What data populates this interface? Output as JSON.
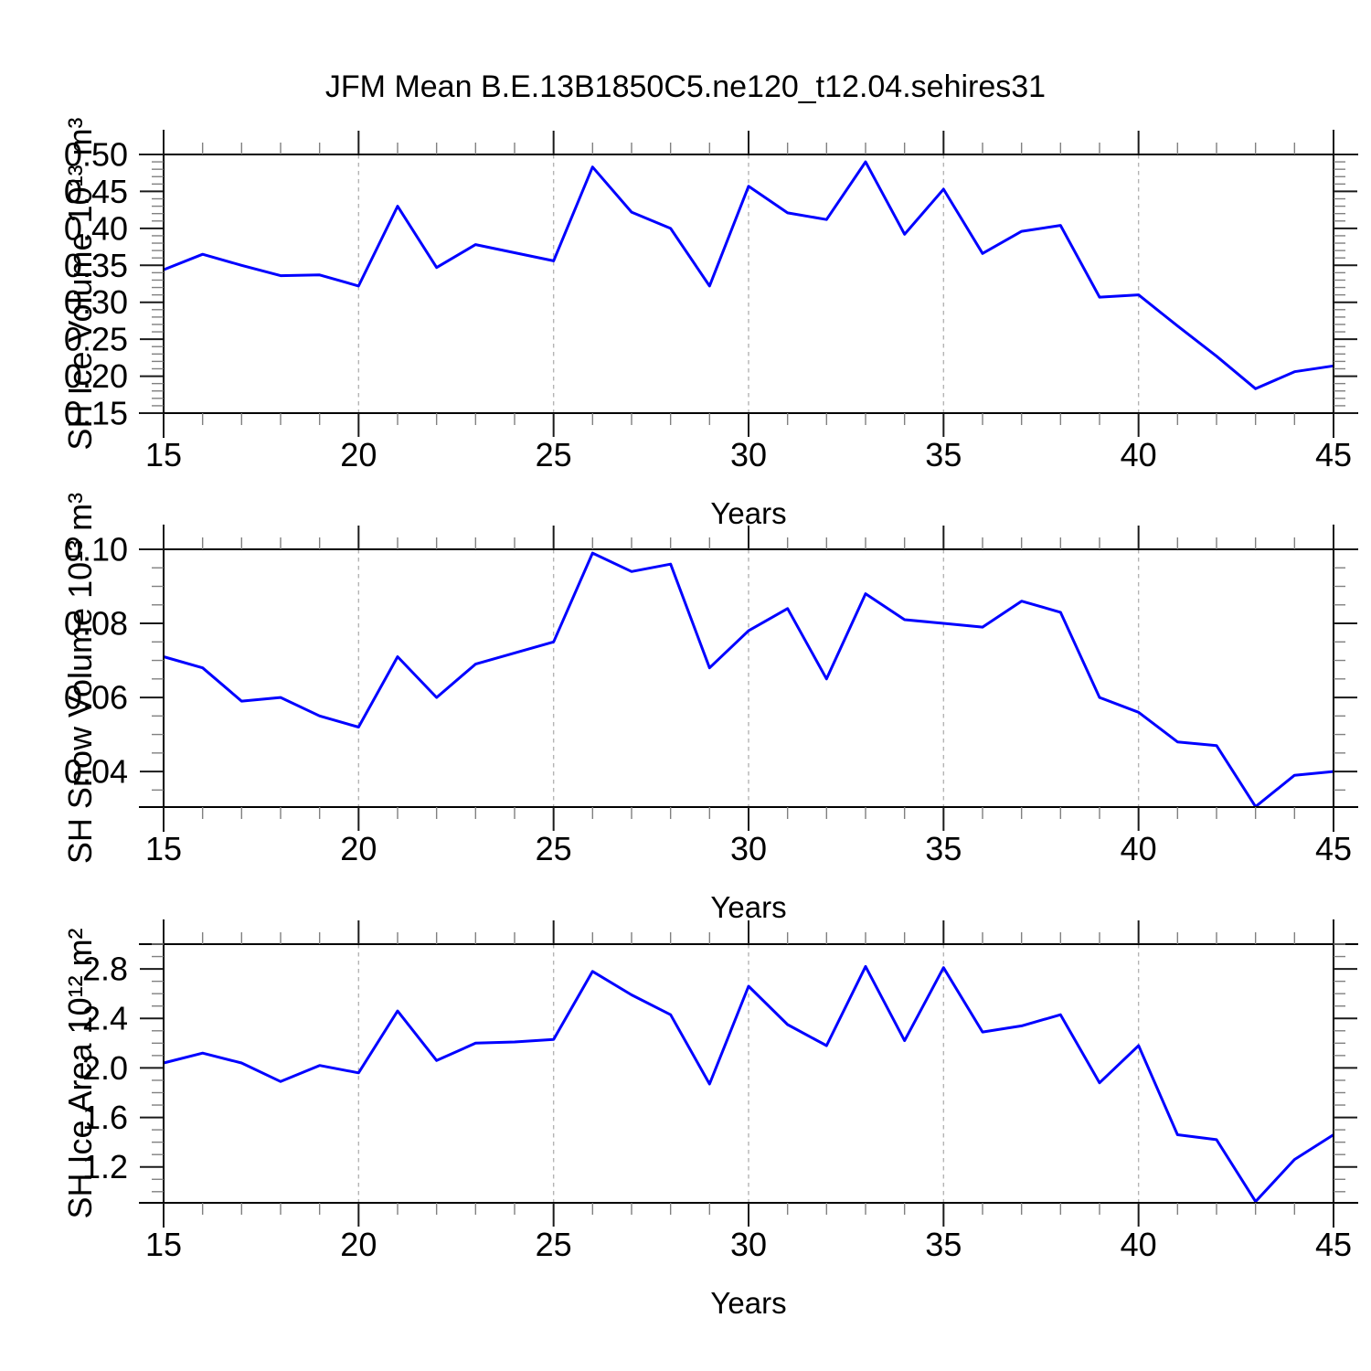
{
  "page": {
    "title": "JFM Mean B.E.13B1850C5.ne120_t12.04.sehires31"
  },
  "style": {
    "line_color": "#0000ff",
    "frame_color": "#000000",
    "major_tick_color": "#1a1a1a",
    "minor_tick_color": "#808080",
    "grid_color": "#b4b4b4",
    "text_color": "#000000"
  },
  "chart_data": [
    {
      "type": "line",
      "name": "sh-ice-volume",
      "ylabel": "SH Ice Volume 10¹³ m³",
      "xlabel": "Years",
      "xlim": [
        15,
        45
      ],
      "ylim": [
        0.15,
        0.5
      ],
      "yminor_step": 0.01,
      "xminor_step": 1,
      "grid_x": [
        20,
        25,
        30,
        35,
        40
      ],
      "xticks": [
        {
          "v": 15,
          "label": "15"
        },
        {
          "v": 20,
          "label": "20"
        },
        {
          "v": 25,
          "label": "25"
        },
        {
          "v": 30,
          "label": "30"
        },
        {
          "v": 35,
          "label": "35"
        },
        {
          "v": 40,
          "label": "40"
        },
        {
          "v": 45,
          "label": "45"
        }
      ],
      "yticks": [
        {
          "v": 0.15,
          "label": "0.15"
        },
        {
          "v": 0.2,
          "label": "0.20"
        },
        {
          "v": 0.25,
          "label": "0.25"
        },
        {
          "v": 0.3,
          "label": "0.30"
        },
        {
          "v": 0.35,
          "label": "0.35"
        },
        {
          "v": 0.4,
          "label": "0.40"
        },
        {
          "v": 0.45,
          "label": "0.45"
        },
        {
          "v": 0.5,
          "label": "0.50"
        }
      ],
      "x": [
        15,
        16,
        17,
        18,
        19,
        20,
        21,
        22,
        23,
        24,
        25,
        26,
        27,
        28,
        29,
        30,
        31,
        32,
        33,
        34,
        35,
        36,
        37,
        38,
        39,
        40,
        41,
        42,
        43,
        44,
        45
      ],
      "values": [
        0.344,
        0.365,
        0.35,
        0.336,
        0.337,
        0.322,
        0.43,
        0.347,
        0.378,
        0.367,
        0.356,
        0.483,
        0.422,
        0.4,
        0.322,
        0.457,
        0.421,
        0.412,
        0.49,
        0.392,
        0.453,
        0.366,
        0.396,
        0.404,
        0.307,
        0.31,
        0.268,
        0.227,
        0.183,
        0.206,
        0.214
      ]
    },
    {
      "type": "line",
      "name": "sh-snow-volume",
      "ylabel": "SH Snow Volume 10¹³ m³",
      "xlabel": "Years",
      "xlim": [
        15,
        45
      ],
      "ylim": [
        0.0304,
        0.1
      ],
      "yminor_step": 0.005,
      "xminor_step": 1,
      "grid_x": [
        20,
        25,
        30,
        35,
        40
      ],
      "xticks": [
        {
          "v": 15,
          "label": "15"
        },
        {
          "v": 20,
          "label": "20"
        },
        {
          "v": 25,
          "label": "25"
        },
        {
          "v": 30,
          "label": "30"
        },
        {
          "v": 35,
          "label": "35"
        },
        {
          "v": 40,
          "label": "40"
        },
        {
          "v": 45,
          "label": "45"
        }
      ],
      "yticks": [
        {
          "v": 0.04,
          "label": "0.04"
        },
        {
          "v": 0.06,
          "label": "0.06"
        },
        {
          "v": 0.08,
          "label": "0.08"
        },
        {
          "v": 0.1,
          "label": "0.10"
        }
      ],
      "x": [
        15,
        16,
        17,
        18,
        19,
        20,
        21,
        22,
        23,
        24,
        25,
        26,
        27,
        28,
        29,
        30,
        31,
        32,
        33,
        34,
        35,
        36,
        37,
        38,
        39,
        40,
        41,
        42,
        43,
        44,
        45
      ],
      "values": [
        0.071,
        0.068,
        0.059,
        0.06,
        0.055,
        0.052,
        0.071,
        0.06,
        0.069,
        0.072,
        0.075,
        0.099,
        0.094,
        0.096,
        0.068,
        0.078,
        0.084,
        0.065,
        0.088,
        0.081,
        0.08,
        0.079,
        0.086,
        0.083,
        0.06,
        0.056,
        0.048,
        0.047,
        0.0305,
        0.039,
        0.04
      ]
    },
    {
      "type": "line",
      "name": "sh-ice-area",
      "ylabel": "SH Ice Area 10¹² m²",
      "xlabel": "Years",
      "xlim": [
        15,
        45
      ],
      "ylim": [
        0.91,
        3.0
      ],
      "yminor_step": 0.1,
      "xminor_step": 1,
      "grid_x": [
        20,
        25,
        30,
        35,
        40
      ],
      "xticks": [
        {
          "v": 15,
          "label": "15"
        },
        {
          "v": 20,
          "label": "20"
        },
        {
          "v": 25,
          "label": "25"
        },
        {
          "v": 30,
          "label": "30"
        },
        {
          "v": 35,
          "label": "35"
        },
        {
          "v": 40,
          "label": "40"
        },
        {
          "v": 45,
          "label": "45"
        }
      ],
      "yticks": [
        {
          "v": 1.2,
          "label": "1.2"
        },
        {
          "v": 1.6,
          "label": "1.6"
        },
        {
          "v": 2.0,
          "label": "2.0"
        },
        {
          "v": 2.4,
          "label": "2.4"
        },
        {
          "v": 2.8,
          "label": "2.8"
        }
      ],
      "x": [
        15,
        16,
        17,
        18,
        19,
        20,
        21,
        22,
        23,
        24,
        25,
        26,
        27,
        28,
        29,
        30,
        31,
        32,
        33,
        34,
        35,
        36,
        37,
        38,
        39,
        40,
        41,
        42,
        43,
        44,
        45
      ],
      "values": [
        2.04,
        2.12,
        2.04,
        1.89,
        2.02,
        1.96,
        2.46,
        2.06,
        2.2,
        2.21,
        2.23,
        2.78,
        2.59,
        2.43,
        1.87,
        2.66,
        2.35,
        2.18,
        2.82,
        2.22,
        2.81,
        2.29,
        2.34,
        2.43,
        1.88,
        2.18,
        1.46,
        1.42,
        0.92,
        1.26,
        1.46
      ]
    }
  ]
}
